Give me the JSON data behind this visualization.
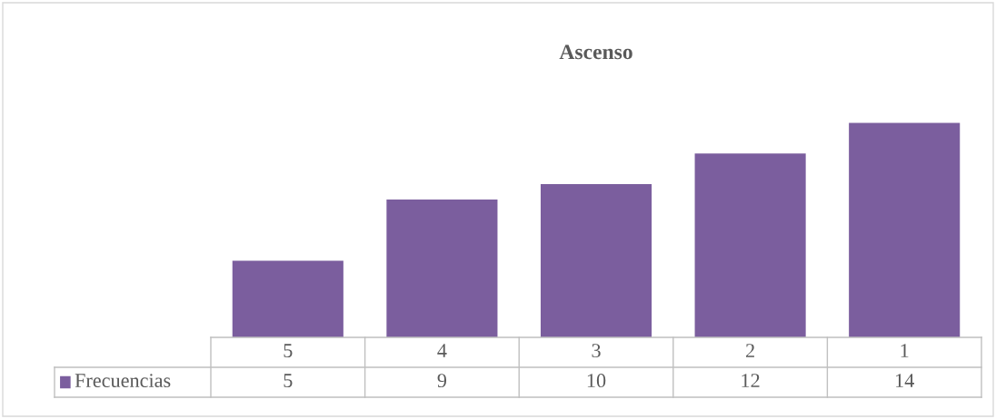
{
  "chart_data": {
    "type": "bar",
    "title": "Ascenso",
    "categories": [
      "5",
      "4",
      "3",
      "2",
      "1"
    ],
    "series": [
      {
        "name": "Frecuencias",
        "color": "#7b5e9e",
        "values": [
          5,
          9,
          10,
          12,
          14
        ]
      }
    ],
    "data_labels": true,
    "legend": "bottom"
  }
}
